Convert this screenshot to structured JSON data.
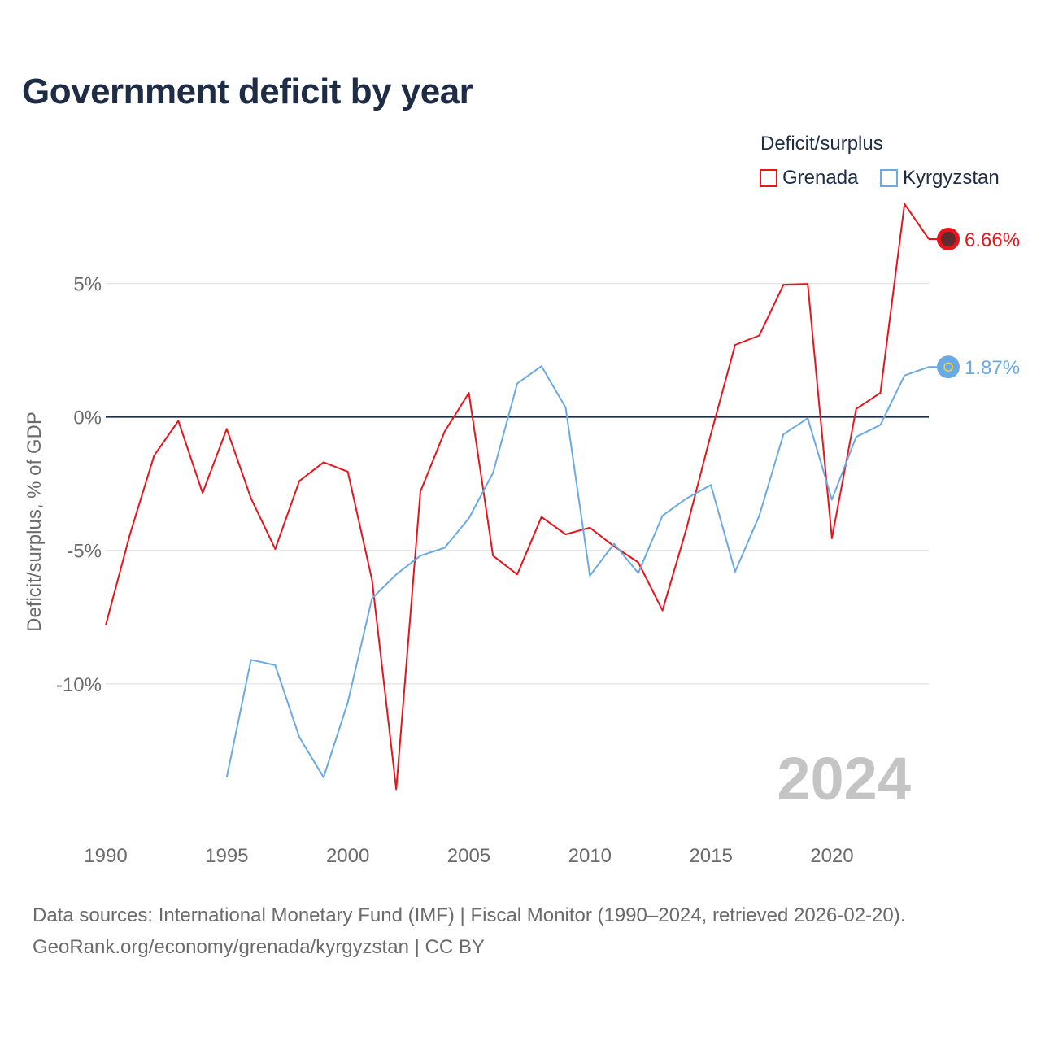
{
  "title": "Government deficit by year",
  "legend": {
    "title": "Deficit/surplus",
    "items": [
      {
        "name": "Grenada",
        "color": "#e8141c"
      },
      {
        "name": "Kyrgyzstan",
        "color": "#6aaae4"
      }
    ]
  },
  "footer": {
    "line1": "Data sources: International Monetary Fund (IMF) | Fiscal Monitor (1990–2024, retrieved 2026-02-20).",
    "line2": "GeoRank.org/economy/grenada/kyrgyzstan | CC BY"
  },
  "chart_data": {
    "type": "line",
    "title": "Government deficit by year",
    "xlabel": "",
    "ylabel": "Deficit/surplus, % of GDP",
    "year_label": "2024",
    "xlim": [
      1990,
      2024
    ],
    "ylim": [
      -15,
      8
    ],
    "x_ticks": [
      1990,
      1995,
      2000,
      2005,
      2010,
      2015,
      2020
    ],
    "y_ticks": [
      5,
      0,
      -5,
      -10
    ],
    "y_tick_labels": [
      "5%",
      "0%",
      "-5%",
      "-10%"
    ],
    "series": [
      {
        "name": "Grenada",
        "color": "#e8141c",
        "end_label": "6.66%",
        "x": [
          1990,
          1991,
          1992,
          1993,
          1994,
          1995,
          1996,
          1997,
          1998,
          1999,
          2000,
          2001,
          2002,
          2003,
          2004,
          2005,
          2006,
          2007,
          2008,
          2009,
          2010,
          2011,
          2012,
          2013,
          2014,
          2015,
          2016,
          2017,
          2018,
          2019,
          2020,
          2021,
          2022,
          2023,
          2024
        ],
        "values": [
          -7.8,
          -4.4,
          -1.45,
          -0.15,
          -2.85,
          -0.45,
          -3.05,
          -4.95,
          -2.4,
          -1.7,
          -2.05,
          -6.1,
          -13.95,
          -2.8,
          -0.55,
          0.9,
          -5.2,
          -5.9,
          -3.75,
          -4.4,
          -4.15,
          -4.85,
          -5.45,
          -7.25,
          -4.15,
          -0.65,
          2.7,
          3.05,
          4.95,
          4.98,
          -4.55,
          0.3,
          0.9,
          7.98,
          6.66
        ]
      },
      {
        "name": "Kyrgyzstan",
        "color": "#6aaae4",
        "end_label": "1.87%",
        "x": [
          1995,
          1996,
          1997,
          1998,
          1999,
          2000,
          2001,
          2002,
          2003,
          2004,
          2005,
          2006,
          2007,
          2008,
          2009,
          2010,
          2011,
          2012,
          2013,
          2014,
          2015,
          2016,
          2017,
          2018,
          2019,
          2020,
          2021,
          2022,
          2023,
          2024
        ],
        "values": [
          -13.5,
          -9.1,
          -9.3,
          -12.0,
          -13.5,
          -10.7,
          -6.8,
          -5.9,
          -5.2,
          -4.9,
          -3.8,
          -2.1,
          1.25,
          1.9,
          0.35,
          -5.95,
          -4.75,
          -5.85,
          -3.7,
          -3.05,
          -2.55,
          -5.8,
          -3.7,
          -0.65,
          -0.05,
          -3.1,
          -0.75,
          -0.3,
          1.55,
          1.87
        ]
      }
    ]
  }
}
